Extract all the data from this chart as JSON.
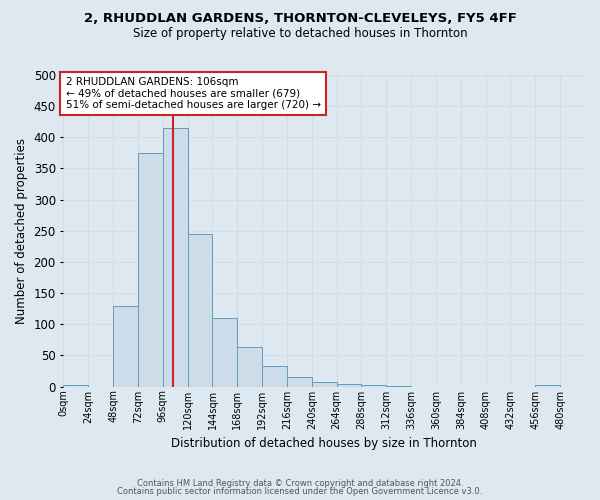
{
  "title": "2, RHUDDLAN GARDENS, THORNTON-CLEVELEYS, FY5 4FF",
  "subtitle": "Size of property relative to detached houses in Thornton",
  "xlabel": "Distribution of detached houses by size in Thornton",
  "ylabel": "Number of detached properties",
  "footnote1": "Contains HM Land Registry data © Crown copyright and database right 2024.",
  "footnote2": "Contains public sector information licensed under the Open Government Licence v3.0.",
  "bin_edges": [
    0,
    24,
    48,
    72,
    96,
    120,
    144,
    168,
    192,
    216,
    240,
    264,
    288,
    312,
    336,
    360,
    384,
    408,
    432,
    456,
    480,
    504
  ],
  "bin_labels": [
    "0sqm",
    "24sqm",
    "48sqm",
    "72sqm",
    "96sqm",
    "120sqm",
    "144sqm",
    "168sqm",
    "192sqm",
    "216sqm",
    "240sqm",
    "264sqm",
    "288sqm",
    "312sqm",
    "336sqm",
    "360sqm",
    "384sqm",
    "408sqm",
    "432sqm",
    "456sqm",
    "480sqm"
  ],
  "counts": [
    3,
    0,
    130,
    375,
    415,
    245,
    110,
    63,
    33,
    16,
    8,
    5,
    2,
    1,
    0,
    0,
    0,
    0,
    0,
    3,
    0
  ],
  "bar_facecolor": "#ccdce8",
  "bar_edgecolor": "#6699bb",
  "grid_color": "#d0dde8",
  "background_color": "#dde8f0",
  "vline_x": 106,
  "vline_color": "#cc2222",
  "annotation_text": "2 RHUDDLAN GARDENS: 106sqm\n← 49% of detached houses are smaller (679)\n51% of semi-detached houses are larger (720) →",
  "annotation_box_color": "#ffffff",
  "annotation_box_edgecolor": "#cc2222",
  "ylim": [
    0,
    500
  ],
  "yticks": [
    0,
    50,
    100,
    150,
    200,
    250,
    300,
    350,
    400,
    450,
    500
  ]
}
